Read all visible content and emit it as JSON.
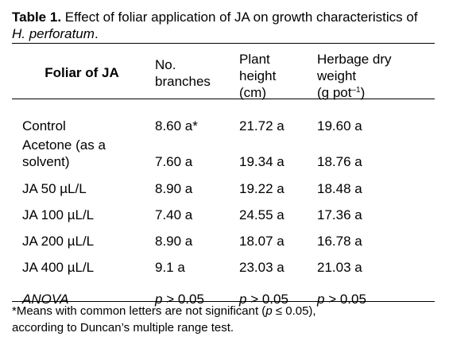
{
  "caption": {
    "label": "Table 1.",
    "text_a": " Effect of foliar application of JA on growth characteristics of ",
    "species": "H. perforatum",
    "text_b": "."
  },
  "headers": {
    "col1": "Foliar of JA",
    "col2_line1": "No.",
    "col2_line2": "branches",
    "col3_line1": "Plant",
    "col3_line2": "height",
    "col3_line3": "(cm)",
    "col4_line1": "Herbage dry",
    "col4_line2": "weight",
    "col4_line3_a": "(g pot",
    "col4_line3_sup": "–1",
    "col4_line3_b": ")"
  },
  "rows": [
    {
      "treatment": "Control",
      "branches": "8.60 a*",
      "height": "21.72 a",
      "weight": "19.60 a"
    },
    {
      "treatment_line1": "Acetone (as a",
      "treatment_line2": "solvent)",
      "branches": "7.60 a",
      "height": "19.34 a",
      "weight": "18.76 a"
    },
    {
      "treatment": "JA 50 µL/L",
      "branches": "8.90 a",
      "height": "19.22 a",
      "weight": "18.48 a"
    },
    {
      "treatment": "JA 100 µL/L",
      "branches": "7.40 a",
      "height": "24.55 a",
      "weight": "17.36 a"
    },
    {
      "treatment": "JA 200 µL/L",
      "branches": "8.90 a",
      "height": "18.07 a",
      "weight": "16.78 a"
    },
    {
      "treatment": "JA 400 µL/L",
      "branches": "9.1 a",
      "height": "23.03 a",
      "weight": "21.03 a"
    }
  ],
  "anova": {
    "label": "ANOVA",
    "p_symbol": "p",
    "branches": " > 0.05",
    "height": " > 0.05",
    "weight": " > 0.05"
  },
  "footnote": {
    "text_a": "*Means with common letters are not significant (",
    "p_symbol": "p",
    "text_b": " ≤ 0.05),",
    "text_c": "according to Duncan’s multiple range test."
  }
}
